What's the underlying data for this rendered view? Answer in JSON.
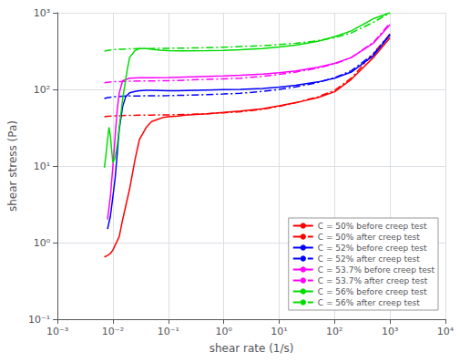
{
  "chart_data": {
    "type": "line",
    "xlabel": "shear rate (1/s)",
    "ylabel": "shear stress (Pa)",
    "log": true,
    "grid": true,
    "legend": "lower right",
    "xlim": [
      0.001,
      10000
    ],
    "ylim": [
      0.1,
      1000
    ],
    "xticks": [
      {
        "value": 0.001,
        "label": "10⁻³"
      },
      {
        "value": 0.01,
        "label": "10⁻²"
      },
      {
        "value": 0.1,
        "label": "10⁻¹"
      },
      {
        "value": 1,
        "label": "10⁰"
      },
      {
        "value": 10,
        "label": "10¹"
      },
      {
        "value": 100,
        "label": "10²"
      },
      {
        "value": 1000,
        "label": "10³"
      },
      {
        "value": 10000,
        "label": "10⁴"
      }
    ],
    "yticks": [
      {
        "value": 0.1,
        "label": "10⁻¹"
      },
      {
        "value": 1,
        "label": "10⁰"
      },
      {
        "value": 10,
        "label": "10¹"
      },
      {
        "value": 100,
        "label": "10²"
      },
      {
        "value": 1000,
        "label": "10³"
      }
    ],
    "series": [
      {
        "name": "C = 50% before creep test",
        "color": "#ff0000",
        "line_style": "solid",
        "x": [
          0.007,
          0.008,
          0.009,
          0.01,
          0.013,
          0.015,
          0.02,
          0.025,
          0.03,
          0.04,
          0.05,
          0.06,
          0.07,
          0.08,
          0.1,
          0.15,
          0.2,
          0.5,
          1.0,
          2.0,
          5.0,
          10.0,
          20.0,
          50.0,
          100.0,
          200.0,
          500.0,
          1000.0
        ],
        "values": [
          0.65,
          0.68,
          0.72,
          0.8,
          1.2,
          2.0,
          5.0,
          12.0,
          22.0,
          32.0,
          38.0,
          40.0,
          41.5,
          43.0,
          44.0,
          45.0,
          46.0,
          48.0,
          50.0,
          52.0,
          56.0,
          61.0,
          67.0,
          78.0,
          93.0,
          135.0,
          260.0,
          470.0
        ]
      },
      {
        "name": "C = 50% after creep test",
        "color": "#ff0000",
        "line_style": "dashdot",
        "x": [
          0.007,
          0.008,
          0.01,
          0.015,
          0.02,
          0.03,
          0.05,
          0.1,
          0.2,
          0.5,
          1.0,
          2.0,
          5.0,
          10.0,
          20.0,
          50.0,
          100.0,
          200.0,
          500.0,
          1000.0
        ],
        "values": [
          44.0,
          44.5,
          45.0,
          45.5,
          45.8,
          46.0,
          46.2,
          46.5,
          47.0,
          48.0,
          49.5,
          51.0,
          55.0,
          60.0,
          67.0,
          80.0,
          97.0,
          140.0,
          295.0,
          530.0
        ]
      },
      {
        "name": "C = 52% before creep test",
        "color": "#0000ff",
        "line_style": "solid",
        "x": [
          0.008,
          0.009,
          0.01,
          0.011,
          0.012,
          0.013,
          0.015,
          0.017,
          0.02,
          0.025,
          0.03,
          0.04,
          0.05,
          0.07,
          0.1,
          0.15,
          0.2,
          0.5,
          1.0,
          2.0,
          5.0,
          10.0,
          20.0,
          50.0,
          100.0,
          200.0,
          500.0,
          1000.0
        ],
        "values": [
          1.5,
          2.2,
          4.0,
          7.0,
          15.0,
          30.0,
          60.0,
          80.0,
          90.0,
          94.0,
          96.0,
          97.0,
          97.0,
          96.5,
          96.0,
          96.0,
          96.5,
          98.0,
          99.0,
          100.0,
          103.0,
          107.0,
          113.0,
          125.0,
          140.0,
          168.0,
          275.0,
          510.0
        ]
      },
      {
        "name": "C = 52% after creep test",
        "color": "#0000ff",
        "line_style": "dashdot",
        "x": [
          0.007,
          0.008,
          0.01,
          0.015,
          0.02,
          0.05,
          0.1,
          0.2,
          0.5,
          1.0,
          2.0,
          5.0,
          10.0,
          20.0,
          50.0,
          100.0,
          200.0,
          500.0,
          1000.0
        ],
        "values": [
          76.0,
          78.0,
          80.0,
          81.5,
          82.0,
          82.5,
          83.0,
          84.0,
          85.5,
          87.0,
          89.0,
          94.0,
          100.0,
          108.0,
          123.0,
          142.0,
          175.0,
          288.0,
          525.0
        ]
      },
      {
        "name": "C = 53.7% before creep test",
        "color": "#ff00ff",
        "line_style": "solid",
        "x": [
          0.008,
          0.009,
          0.01,
          0.011,
          0.012,
          0.013,
          0.015,
          0.02,
          0.03,
          0.05,
          0.1,
          0.2,
          0.5,
          1.0,
          2.0,
          5.0,
          10.0,
          20.0,
          50.0,
          100.0,
          200.0,
          500.0,
          1000.0
        ],
        "values": [
          2.0,
          4.0,
          10.0,
          25.0,
          55.0,
          90.0,
          130.0,
          140.0,
          142.0,
          142.0,
          143.0,
          145.0,
          148.0,
          150.0,
          153.0,
          158.0,
          165.0,
          174.0,
          195.0,
          218.0,
          260.0,
          400.0,
          700.0
        ]
      },
      {
        "name": "C = 53.7% after creep test",
        "color": "#ff00ff",
        "line_style": "dashdot",
        "x": [
          0.007,
          0.008,
          0.01,
          0.015,
          0.02,
          0.05,
          0.1,
          0.2,
          0.5,
          1.0,
          2.0,
          5.0,
          10.0,
          20.0,
          50.0,
          100.0,
          200.0,
          500.0,
          1000.0
        ],
        "values": [
          122.0,
          124.0,
          126.0,
          127.0,
          128.0,
          129.0,
          130.0,
          132.0,
          135.0,
          137.0,
          140.0,
          148.0,
          157.0,
          168.0,
          190.0,
          215.0,
          260.0,
          410.0,
          730.0
        ]
      },
      {
        "name": "C = 56% before creep test",
        "color": "#00dd00",
        "line_style": "solid",
        "x": [
          0.007,
          0.0075,
          0.008,
          0.0085,
          0.009,
          0.0095,
          0.01,
          0.011,
          0.012,
          0.013,
          0.015,
          0.018,
          0.02,
          0.025,
          0.03,
          0.04,
          0.05,
          0.07,
          0.1,
          0.15,
          0.2,
          0.5,
          1.0,
          2.0,
          5.0,
          10.0,
          20.0,
          50.0,
          100.0,
          200.0,
          500.0,
          1000.0
        ],
        "values": [
          9.5,
          14.0,
          22.0,
          32.0,
          25.0,
          16.0,
          11.0,
          13.0,
          19.0,
          32.0,
          75.0,
          175.0,
          260.0,
          320.0,
          340.0,
          340.0,
          335.0,
          325.0,
          320.0,
          318.0,
          318.0,
          320.0,
          323.0,
          330.0,
          340.0,
          358.0,
          378.0,
          425.0,
          488.0,
          580.0,
          835.0,
          1000.0
        ]
      },
      {
        "name": "C = 56% after creep test",
        "color": "#00dd00",
        "line_style": "dashdot",
        "x": [
          0.007,
          0.008,
          0.01,
          0.015,
          0.02,
          0.03,
          0.05,
          0.08,
          0.1,
          0.2,
          0.3,
          0.5,
          1.0,
          2.0,
          5.0,
          10.0,
          20.0,
          50.0,
          100.0,
          200.0,
          500.0,
          1000.0
        ],
        "values": [
          315.0,
          322.0,
          330.0,
          335.0,
          338.0,
          340.0,
          342.0,
          343.0,
          344.0,
          346.0,
          348.0,
          350.0,
          355.0,
          362.0,
          372.0,
          385.0,
          400.0,
          432.0,
          473.0,
          545.0,
          750.0,
          1000.0
        ]
      }
    ]
  }
}
